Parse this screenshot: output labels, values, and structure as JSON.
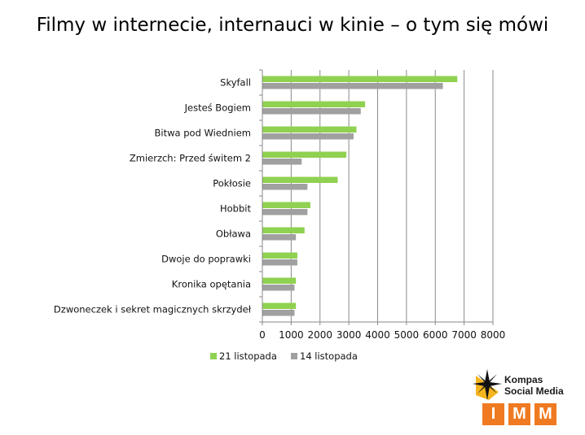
{
  "title": "Filmy w internecie, internauci w kinie – o tym się mówi",
  "chart_data": {
    "type": "bar",
    "orientation": "horizontal",
    "categories": [
      "Skyfall",
      "Jesteś Bogiem",
      "Bitwa pod Wiedniem",
      "Zmierzch: Przed świtem 2",
      "Pokłosie",
      "Hobbit",
      "Obława",
      "Dwoje do poprawki",
      "Kronika opętania",
      "Dzwoneczek i sekret magicznych skrzydeł"
    ],
    "series": [
      {
        "name": "21 listopada",
        "color": "#8fd150",
        "values": [
          6750,
          3550,
          3250,
          2900,
          2600,
          1650,
          1450,
          1200,
          1150,
          1150
        ]
      },
      {
        "name": "14 listopada",
        "color": "#a0a0a0",
        "values": [
          6250,
          3400,
          3150,
          1350,
          1550,
          1550,
          1150,
          1200,
          1100,
          1100
        ]
      }
    ],
    "xlim": [
      0,
      8000
    ],
    "xticks": [
      0,
      1000,
      2000,
      3000,
      4000,
      5000,
      6000,
      7000,
      8000
    ],
    "grid": true,
    "legend": "bottom"
  },
  "logo": {
    "line1": "Kompas",
    "line2": "Social Media",
    "letters": [
      "I",
      "M",
      "M"
    ],
    "star_icon": "compass-star-icon"
  }
}
